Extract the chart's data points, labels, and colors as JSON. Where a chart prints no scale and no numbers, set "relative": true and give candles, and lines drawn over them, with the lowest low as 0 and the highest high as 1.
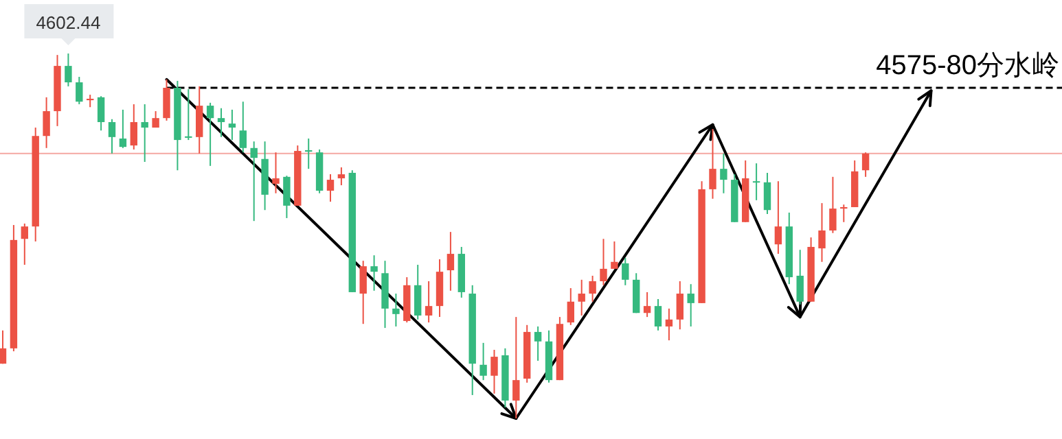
{
  "chart_data": {
    "type": "candlestick",
    "relative": true,
    "categories": [
      null,
      null,
      null,
      null,
      null,
      null,
      null,
      null,
      null,
      null,
      null,
      null,
      null,
      null,
      null,
      null,
      null,
      null,
      null,
      null,
      null,
      null,
      null,
      null,
      null,
      null,
      null,
      null,
      null,
      null,
      null,
      null,
      null,
      null,
      null,
      null,
      null,
      null,
      null,
      null,
      null,
      null,
      null,
      null,
      null,
      null,
      null,
      null,
      null,
      null,
      null,
      null,
      null,
      null,
      null,
      null,
      null,
      null,
      null,
      null,
      null,
      null,
      null,
      null,
      null,
      null,
      null,
      null,
      null,
      null,
      null,
      null,
      null,
      null,
      null,
      null,
      null,
      null,
      null,
      null,
      null,
      null,
      null,
      null,
      null,
      null
    ],
    "ohlc": [
      [
        0.15,
        0.241,
        0.15,
        0.192
      ],
      [
        0.192,
        0.53,
        0.184,
        0.489
      ],
      [
        0.492,
        0.534,
        0.421,
        0.526
      ],
      [
        0.526,
        0.797,
        0.485,
        0.774
      ],
      [
        0.774,
        0.88,
        0.741,
        0.842
      ],
      [
        0.842,
        0.996,
        0.801,
        0.966
      ],
      [
        0.966,
        1,
        0.91,
        0.921
      ],
      [
        0.921,
        0.936,
        0.861,
        0.868
      ],
      [
        0.872,
        0.887,
        0.853,
        0.876
      ],
      [
        0.88,
        0.883,
        0.789,
        0.812
      ],
      [
        0.812,
        0.82,
        0.726,
        0.771
      ],
      [
        0.767,
        0.846,
        0.741,
        0.744
      ],
      [
        0.748,
        0.861,
        0.737,
        0.812
      ],
      [
        0.812,
        0.861,
        0.703,
        0.797
      ],
      [
        0.797,
        0.842,
        0.797,
        0.823
      ],
      [
        0.823,
        0.929,
        0.816,
        0.906
      ],
      [
        0.906,
        0.925,
        0.68,
        0.763
      ],
      [
        0.773,
        0.902,
        0.763,
        0.769
      ],
      [
        0.771,
        0.91,
        0.726,
        0.857
      ],
      [
        0.857,
        0.865,
        0.692,
        0.823
      ],
      [
        0.823,
        0.85,
        0.771,
        0.812
      ],
      [
        0.808,
        0.846,
        0.763,
        0.797
      ],
      [
        0.789,
        0.868,
        0.729,
        0.741
      ],
      [
        0.741,
        0.759,
        0.541,
        0.714
      ],
      [
        0.711,
        0.759,
        0.571,
        0.613
      ],
      [
        0.643,
        0.729,
        0.617,
        0.658
      ],
      [
        0.662,
        0.665,
        0.549,
        0.583
      ],
      [
        0.583,
        0.748,
        0.583,
        0.733
      ],
      [
        0.735,
        0.767,
        0.684,
        0.731
      ],
      [
        0.729,
        0.737,
        0.617,
        0.624
      ],
      [
        0.624,
        0.669,
        0.594,
        0.654
      ],
      [
        0.658,
        0.688,
        0.639,
        0.669
      ],
      [
        0.673,
        0.68,
        0.346,
        0.346
      ],
      [
        0.342,
        0.432,
        0.259,
        0.417
      ],
      [
        0.417,
        0.447,
        0.35,
        0.402
      ],
      [
        0.398,
        0.432,
        0.248,
        0.301
      ],
      [
        0.301,
        0.342,
        0.252,
        0.286
      ],
      [
        0.267,
        0.387,
        0.263,
        0.365
      ],
      [
        0.365,
        0.421,
        0.271,
        0.282
      ],
      [
        0.282,
        0.376,
        0.263,
        0.308
      ],
      [
        0.308,
        0.436,
        0.278,
        0.402
      ],
      [
        0.406,
        0.511,
        0.35,
        0.451
      ],
      [
        0.451,
        0.47,
        0.331,
        0.346
      ],
      [
        0.342,
        0.365,
        0.064,
        0.15
      ],
      [
        0.147,
        0.207,
        0.105,
        0.117
      ],
      [
        0.117,
        0.188,
        0.068,
        0.169
      ],
      [
        0.173,
        0.192,
        0.03,
        0.049
      ],
      [
        0.049,
        0.278,
        0,
        0.105
      ],
      [
        0.109,
        0.256,
        0.098,
        0.237
      ],
      [
        0.237,
        0.252,
        0.158,
        0.211
      ],
      [
        0.211,
        0.241,
        0.098,
        0.105
      ],
      [
        0.105,
        0.278,
        0.105,
        0.259
      ],
      [
        0.263,
        0.357,
        0.256,
        0.32
      ],
      [
        0.32,
        0.38,
        0.282,
        0.342
      ],
      [
        0.342,
        0.391,
        0.32,
        0.376
      ],
      [
        0.376,
        0.492,
        0.365,
        0.41
      ],
      [
        0.41,
        0.485,
        0.41,
        0.429
      ],
      [
        0.425,
        0.44,
        0.365,
        0.38
      ],
      [
        0.38,
        0.398,
        0.289,
        0.289
      ],
      [
        0.289,
        0.346,
        0.278,
        0.308
      ],
      [
        0.308,
        0.327,
        0.241,
        0.252
      ],
      [
        0.252,
        0.301,
        0.214,
        0.271
      ],
      [
        0.271,
        0.376,
        0.244,
        0.342
      ],
      [
        0.342,
        0.368,
        0.252,
        0.316
      ],
      [
        0.316,
        0.65,
        0.316,
        0.628
      ],
      [
        0.628,
        0.793,
        0.602,
        0.684
      ],
      [
        0.684,
        0.726,
        0.617,
        0.654
      ],
      [
        0.654,
        0.669,
        0.538,
        0.538
      ],
      [
        0.538,
        0.707,
        0.538,
        0.658
      ],
      [
        0.65,
        0.699,
        0.598,
        0.647
      ],
      [
        0.647,
        0.673,
        0.56,
        0.571
      ],
      [
        0.477,
        0.65,
        0.451,
        0.526
      ],
      [
        0.526,
        0.564,
        0.368,
        0.387
      ],
      [
        0.391,
        0.462,
        0.312,
        0.32
      ],
      [
        0.32,
        0.496,
        0.32,
        0.47
      ],
      [
        0.466,
        0.59,
        0.429,
        0.515
      ],
      [
        0.515,
        0.662,
        0.508,
        0.575
      ],
      [
        0.575,
        0.586,
        0.538,
        0.579
      ],
      [
        0.579,
        0.707,
        0.579,
        0.677
      ],
      [
        0.68,
        0.729,
        0.662,
        0.726
      ],
      null,
      null,
      null,
      null,
      null,
      null
    ],
    "colors": [
      "#ec5245",
      "#ec5245",
      "#ec5245",
      "#ec5245",
      "#ec5245",
      "#ec5245",
      "#35b97f",
      "#35b97f",
      "#ec5245",
      "#35b97f",
      "#35b97f",
      "#35b97f",
      "#ec5245",
      "#35b97f",
      "#ec5245",
      "#ec5245",
      "#35b97f",
      "#35b97f",
      "#ec5245",
      "#35b97f",
      "#35b97f",
      "#35b97f",
      "#35b97f",
      "#35b97f",
      "#35b97f",
      "#ec5245",
      "#35b97f",
      "#ec5245",
      "#35b97f",
      "#35b97f",
      "#ec5245",
      "#ec5245",
      "#35b97f",
      "#ec5245",
      "#35b97f",
      "#35b97f",
      "#35b97f",
      "#ec5245",
      "#35b97f",
      "#ec5245",
      "#ec5245",
      "#ec5245",
      "#35b97f",
      "#35b97f",
      "#35b97f",
      "#ec5245",
      "#35b97f",
      "#ec5245",
      "#ec5245",
      "#35b97f",
      "#35b97f",
      "#ec5245",
      "#ec5245",
      "#ec5245",
      "#ec5245",
      "#ec5245",
      "#ec5245",
      "#35b97f",
      "#35b97f",
      "#ec5245",
      "#35b97f",
      "#ec5245",
      "#ec5245",
      "#35b97f",
      "#ec5245",
      "#ec5245",
      "#35b97f",
      "#35b97f",
      "#ec5245",
      "#35b97f",
      "#35b97f",
      "#ec5245",
      "#35b97f",
      "#35b97f",
      "#ec5245",
      "#ec5245",
      "#ec5245",
      "#ec5245",
      "#ec5245",
      "#ec5245",
      null,
      null,
      null,
      null,
      null,
      null
    ],
    "ref_lines": [
      {
        "axis": "y",
        "value": 0.726,
        "color": "#f5a7a2"
      },
      {
        "axis": "y",
        "value": 0.906,
        "line_style": "dashed",
        "color": "#000000",
        "label": "4575-80分水岭"
      }
    ],
    "series": [
      {
        "type": "line",
        "color": "#000000",
        "values": [
          null,
          null,
          null,
          null,
          null,
          null,
          null,
          null,
          null,
          null,
          null,
          null,
          null,
          null,
          null,
          0.929,
          null,
          null,
          null,
          null,
          null,
          null,
          null,
          null,
          null,
          null,
          null,
          null,
          null,
          null,
          null,
          null,
          null,
          null,
          null,
          null,
          null,
          null,
          null,
          null,
          null,
          null,
          null,
          null,
          null,
          null,
          null,
          0,
          null,
          null,
          null,
          null,
          null,
          null,
          null,
          null,
          null,
          null,
          null,
          null,
          null,
          null,
          null,
          null,
          null,
          0.805,
          null,
          null,
          null,
          null,
          null,
          null,
          null,
          0.278,
          null,
          null,
          null,
          null,
          null,
          null,
          null,
          null,
          null,
          null,
          null,
          0.898
        ]
      }
    ],
    "annotations": [
      {
        "text": "4602.44",
        "y": 1
      }
    ]
  }
}
